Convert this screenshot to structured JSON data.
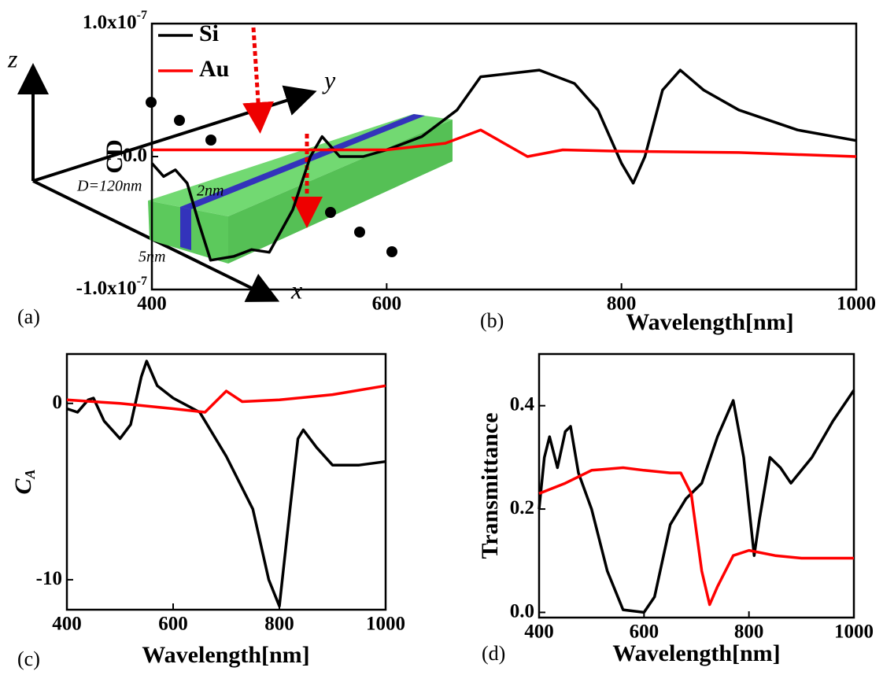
{
  "diagram": {
    "axis_labels": [
      "z",
      "y",
      "x"
    ],
    "dimension_labels": [
      "D=120nm",
      "2nm",
      "5nm"
    ]
  },
  "panel_labels": [
    "(a)",
    "(b)",
    "(c)",
    "(d)"
  ],
  "chart_data": [
    {
      "type": "line",
      "xlabel": "Wavelength[nm]",
      "ylabel": "CD",
      "xlim": [
        400,
        1000
      ],
      "xticks": [
        400,
        600,
        800,
        1000
      ],
      "ylim": [
        -1e-07,
        1e-07
      ],
      "yticks": [
        {
          "value": -1e-07,
          "label": "-1.0x10",
          "exponent": "-7"
        },
        {
          "value": 0,
          "label": "0.0"
        },
        {
          "value": 1e-07,
          "label": "1.0x10",
          "exponent": "-7"
        }
      ],
      "series": [
        {
          "name": "Si",
          "color": "#000000",
          "x": [
            400,
            410,
            420,
            430,
            440,
            450,
            470,
            485,
            500,
            520,
            535,
            545,
            560,
            580,
            600,
            630,
            660,
            680,
            700,
            730,
            760,
            780,
            800,
            810,
            820,
            835,
            850,
            870,
            900,
            950,
            1000
          ],
          "values": [
            -5e-09,
            -1.5e-08,
            -1e-08,
            -2e-08,
            -5e-08,
            -7.8e-08,
            -7.5e-08,
            -7e-08,
            -7.2e-08,
            -4e-08,
            0,
            1.5e-08,
            0,
            0,
            5e-09,
            1.5e-08,
            3.5e-08,
            6e-08,
            6.2e-08,
            6.5e-08,
            5.5e-08,
            3.5e-08,
            -5e-09,
            -2e-08,
            0,
            5e-08,
            6.5e-08,
            5e-08,
            3.5e-08,
            2e-08,
            1.2e-08
          ]
        },
        {
          "name": "Au",
          "color": "#ff0000",
          "x": [
            400,
            500,
            600,
            650,
            680,
            700,
            720,
            750,
            800,
            900,
            1000
          ],
          "values": [
            5e-09,
            5e-09,
            5e-09,
            1e-08,
            2e-08,
            1e-08,
            0,
            5e-09,
            4e-09,
            3e-09,
            0
          ]
        }
      ]
    },
    {
      "type": "line",
      "xlabel": "Wavelength[nm]",
      "ylabel": {
        "text": "C",
        "subscript": "A"
      },
      "xlim": [
        400,
        1000
      ],
      "xticks": [
        400,
        600,
        800,
        1000
      ],
      "ylim": [
        -11.7,
        2.8
      ],
      "yticks": [
        -10,
        0
      ],
      "series": [
        {
          "color": "#000000",
          "x": [
            400,
            420,
            440,
            450,
            470,
            500,
            520,
            540,
            550,
            570,
            600,
            650,
            700,
            750,
            780,
            800,
            820,
            835,
            845,
            870,
            900,
            950,
            1000
          ],
          "values": [
            -0.3,
            -0.5,
            0.2,
            0.3,
            -1,
            -2,
            -1.2,
            1.5,
            2.4,
            1,
            0.3,
            -0.5,
            -3,
            -6,
            -10,
            -11.5,
            -6,
            -2,
            -1.5,
            -2.5,
            -3.5,
            -3.5,
            -3.3
          ]
        },
        {
          "color": "#ff0000",
          "x": [
            400,
            500,
            600,
            660,
            700,
            730,
            800,
            900,
            1000
          ],
          "values": [
            0.2,
            0,
            -0.3,
            -0.5,
            0.7,
            0.1,
            0.2,
            0.5,
            1.0
          ]
        }
      ]
    },
    {
      "type": "line",
      "xlabel": "Wavelength[nm]",
      "ylabel": "Transmittance",
      "xlim": [
        400,
        1000
      ],
      "xticks": [
        400,
        600,
        800,
        1000
      ],
      "ylim": [
        -0.01,
        0.5
      ],
      "yticks": [
        {
          "value": 0,
          "label": "0.0"
        },
        0.2,
        0.4
      ],
      "series": [
        {
          "color": "#000000",
          "x": [
            400,
            410,
            420,
            435,
            450,
            460,
            475,
            500,
            530,
            560,
            600,
            620,
            650,
            680,
            710,
            740,
            770,
            790,
            810,
            820,
            840,
            860,
            880,
            920,
            960,
            1000
          ],
          "values": [
            0.2,
            0.3,
            0.34,
            0.28,
            0.35,
            0.36,
            0.27,
            0.2,
            0.08,
            0.005,
            0.0,
            0.03,
            0.17,
            0.22,
            0.25,
            0.34,
            0.41,
            0.3,
            0.11,
            0.18,
            0.3,
            0.28,
            0.25,
            0.3,
            0.37,
            0.43
          ]
        },
        {
          "color": "#ff0000",
          "x": [
            400,
            450,
            500,
            560,
            600,
            650,
            670,
            690,
            710,
            725,
            740,
            770,
            800,
            850,
            900,
            1000
          ],
          "values": [
            0.23,
            0.25,
            0.275,
            0.28,
            0.275,
            0.27,
            0.27,
            0.23,
            0.08,
            0.015,
            0.05,
            0.11,
            0.12,
            0.11,
            0.105,
            0.105
          ]
        }
      ]
    }
  ]
}
